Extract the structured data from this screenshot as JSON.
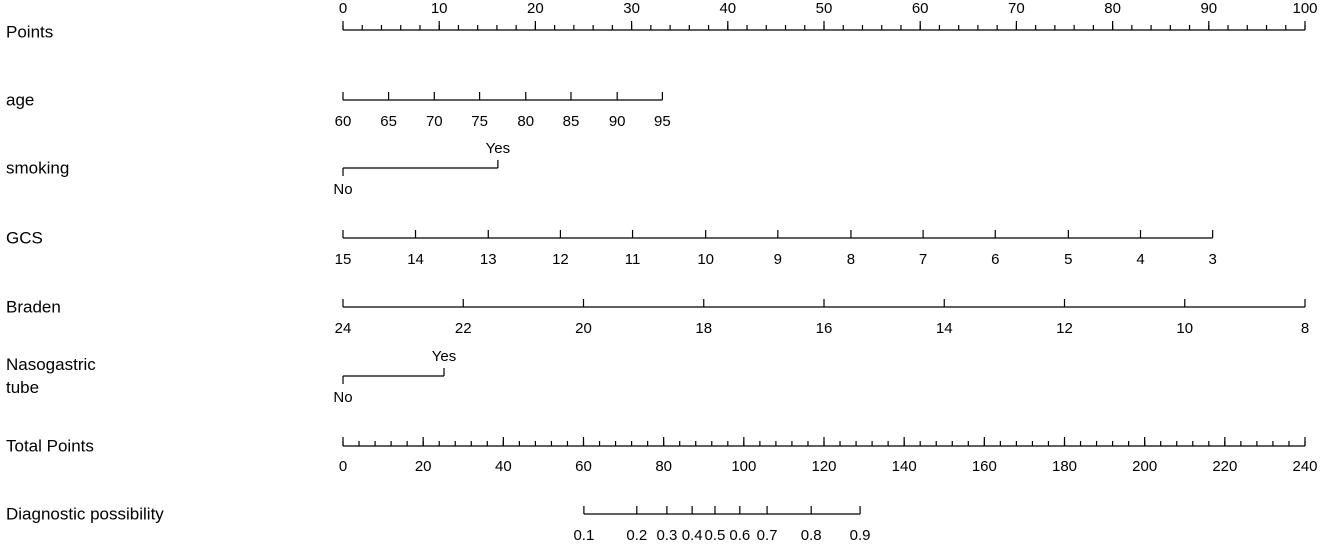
{
  "chart_data": {
    "type": "nomogram",
    "x_label": "Points",
    "xlim": [
      0,
      100
    ],
    "xticks": [
      0,
      10,
      20,
      30,
      40,
      50,
      60,
      70,
      80,
      90,
      100
    ],
    "x_minor_ticks": [
      0,
      2,
      4,
      6,
      8,
      10,
      12,
      14,
      16,
      18,
      20,
      22,
      24,
      26,
      28,
      30,
      32,
      34,
      36,
      38,
      40,
      42,
      44,
      46,
      48,
      50,
      52,
      54,
      56,
      58,
      60,
      62,
      64,
      66,
      68,
      70,
      72,
      74,
      76,
      78,
      80,
      82,
      84,
      86,
      88,
      90,
      92,
      94,
      96,
      98,
      100
    ],
    "x2_label": "Total Points",
    "x2lim": [
      0,
      240
    ],
    "x2ticks": [
      0,
      20,
      40,
      60,
      80,
      100,
      120,
      140,
      160,
      180,
      200,
      220,
      240
    ],
    "x2_minor_ticks": [
      0,
      4,
      8,
      12,
      16,
      20,
      24,
      28,
      32,
      36,
      40,
      44,
      48,
      52,
      56,
      60,
      64,
      68,
      72,
      76,
      80,
      84,
      88,
      92,
      96,
      100,
      104,
      108,
      112,
      116,
      120,
      124,
      128,
      132,
      136,
      140,
      144,
      148,
      152,
      156,
      160,
      164,
      168,
      172,
      176,
      180,
      184,
      188,
      192,
      196,
      200,
      204,
      208,
      212,
      216,
      220,
      224,
      228,
      232,
      236,
      240
    ],
    "rows": [
      {
        "label": "age",
        "scale": "x",
        "ticks": [
          {
            "value": 0,
            "label": "60"
          },
          {
            "value": 4.74,
            "label": "65"
          },
          {
            "value": 9.49,
            "label": "70"
          },
          {
            "value": 14.2,
            "label": "75"
          },
          {
            "value": 19,
            "label": "80"
          },
          {
            "value": 23.7,
            "label": "85"
          },
          {
            "value": 28.5,
            "label": "90"
          },
          {
            "value": 33.2,
            "label": "95"
          }
        ]
      },
      {
        "label": "smoking",
        "scale": "x",
        "alternate": true,
        "ticks": [
          {
            "value": 0,
            "label": "No"
          },
          {
            "value": 16.1,
            "label": "Yes"
          }
        ]
      },
      {
        "label": "GCS",
        "scale": "x",
        "ticks": [
          {
            "value": 0,
            "label": "15"
          },
          {
            "value": 7.54,
            "label": "14"
          },
          {
            "value": 15.1,
            "label": "13"
          },
          {
            "value": 22.6,
            "label": "12"
          },
          {
            "value": 30.1,
            "label": "11"
          },
          {
            "value": 37.7,
            "label": "10"
          },
          {
            "value": 45.2,
            "label": "9"
          },
          {
            "value": 52.8,
            "label": "8"
          },
          {
            "value": 60.3,
            "label": "7"
          },
          {
            "value": 67.8,
            "label": "6"
          },
          {
            "value": 75.4,
            "label": "5"
          },
          {
            "value": 82.9,
            "label": "4"
          },
          {
            "value": 90.4,
            "label": "3"
          }
        ]
      },
      {
        "label": "Braden",
        "scale": "x",
        "ticks": [
          {
            "value": 0,
            "label": "24"
          },
          {
            "value": 12.5,
            "label": "22"
          },
          {
            "value": 25,
            "label": "20"
          },
          {
            "value": 37.5,
            "label": "18"
          },
          {
            "value": 50,
            "label": "16"
          },
          {
            "value": 62.5,
            "label": "14"
          },
          {
            "value": 75,
            "label": "12"
          },
          {
            "value": 87.5,
            "label": "10"
          },
          {
            "value": 100,
            "label": "8"
          }
        ]
      },
      {
        "label": "Nasogastric\ntube",
        "scale": "x",
        "alternate": true,
        "ticks": [
          {
            "value": 0,
            "label": "No"
          },
          {
            "value": 10.5,
            "label": "Yes"
          }
        ]
      },
      {
        "label": "Diagnostic possibility",
        "scale": "x2",
        "ticks": [
          {
            "value": 60.1,
            "label": "0.1"
          },
          {
            "value": 73.3,
            "label": "0.2"
          },
          {
            "value": 80.8,
            "label": "0.3"
          },
          {
            "value": 87.1,
            "label": "0.4"
          },
          {
            "value": 92.8,
            "label": "0.5"
          },
          {
            "value": 99,
            "label": "0.6"
          },
          {
            "value": 105.8,
            "label": "0.7"
          },
          {
            "value": 116.8,
            "label": "0.8"
          },
          {
            "value": 129,
            "label": "0.9"
          }
        ]
      }
    ]
  }
}
